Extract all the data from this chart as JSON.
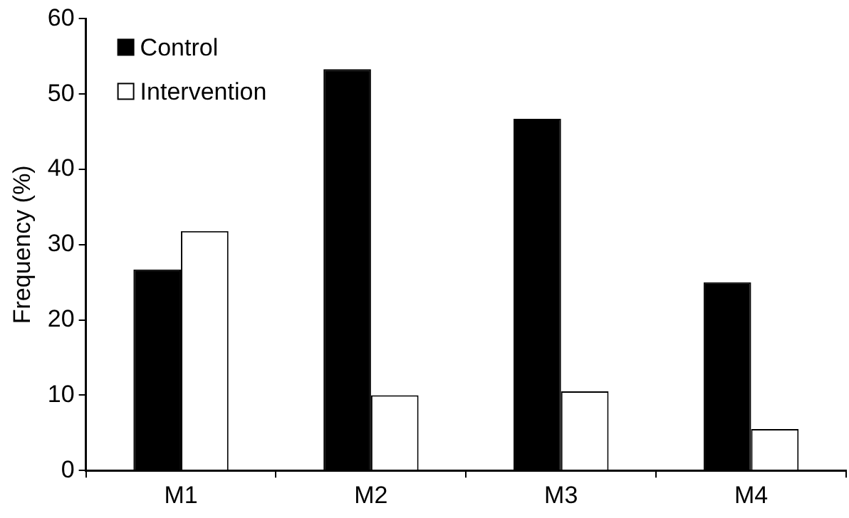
{
  "chart_data": {
    "type": "bar",
    "ylabel": "Frequency (%)",
    "categories": [
      "M1",
      "M2",
      "M3",
      "M4"
    ],
    "series": [
      {
        "name": "Control",
        "color": "#000000",
        "values": [
          26.7,
          53.3,
          46.7,
          25
        ]
      },
      {
        "name": "Intervention",
        "color": "#ffffff",
        "values": [
          31.8,
          10,
          10.5,
          5.5
        ]
      }
    ],
    "ylim": [
      0,
      60
    ],
    "yticks": [
      0,
      10,
      20,
      30,
      40,
      50,
      60
    ],
    "grid": false,
    "legend": "top left"
  }
}
